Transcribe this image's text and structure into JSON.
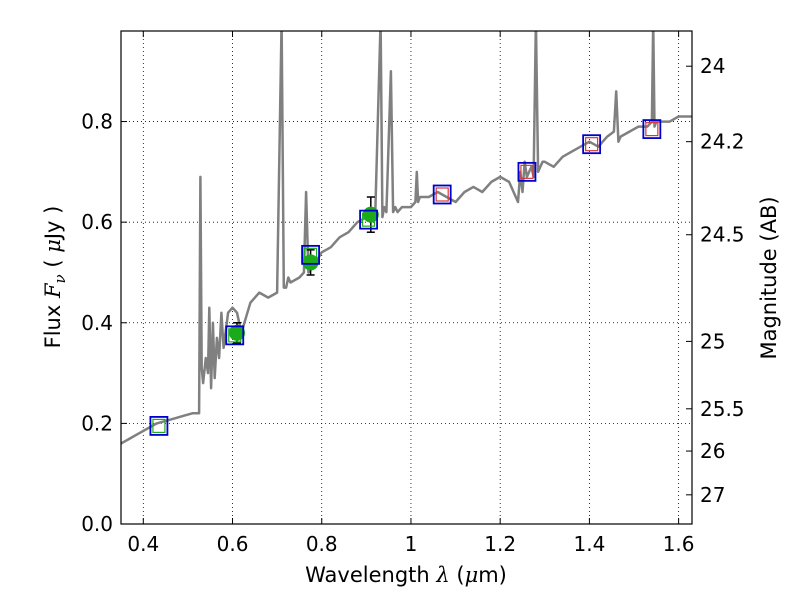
{
  "chart_data": {
    "type": "line",
    "xlabel": "Wavelength  λ (μm)",
    "ylabel": "Flux  F_ν  ( μJy )",
    "y2label": "Magnitude (AB)",
    "xlim": [
      0.35,
      1.63
    ],
    "ylim": [
      0.0,
      0.98
    ],
    "grid": true,
    "x_ticks": [
      0.4,
      0.6,
      0.8,
      1.0,
      1.2,
      1.4,
      1.6
    ],
    "x_tick_labels": [
      "0.4",
      "0.6",
      "0.8",
      "1",
      "1.2",
      "1.4",
      "1.6"
    ],
    "y_ticks": [
      0.0,
      0.2,
      0.4,
      0.6,
      0.8
    ],
    "y_tick_labels": [
      "0.0",
      "0.2",
      "0.4",
      "0.6",
      "0.8"
    ],
    "y2_ticks": [
      {
        "label": "24",
        "flux": 0.91
      },
      {
        "label": "24.2",
        "flux": 0.76
      },
      {
        "label": "24.5",
        "flux": 0.575
      },
      {
        "label": "25",
        "flux": 0.363
      },
      {
        "label": "25.5",
        "flux": 0.229
      },
      {
        "label": "26",
        "flux": 0.145
      },
      {
        "label": "27",
        "flux": 0.058
      }
    ],
    "colors": {
      "spectrum": "#808080",
      "measured": "#1aaa1a",
      "model_box": "#0000cc",
      "model_inner_green": "#22aa22",
      "model_inner_red": "#d43a3a",
      "errorbar": "#000000"
    },
    "series": [
      {
        "style": "line",
        "color": "#808080",
        "x": [
          0.35,
          0.37,
          0.39,
          0.41,
          0.43,
          0.45,
          0.47,
          0.49,
          0.51,
          0.525,
          0.528,
          0.531,
          0.534,
          0.54,
          0.545,
          0.548,
          0.552,
          0.556,
          0.56,
          0.565,
          0.57,
          0.575,
          0.58,
          0.59,
          0.6,
          0.61,
          0.62,
          0.63,
          0.64,
          0.66,
          0.68,
          0.7,
          0.71,
          0.715,
          0.72,
          0.725,
          0.73,
          0.75,
          0.76,
          0.765,
          0.77,
          0.78,
          0.8,
          0.82,
          0.84,
          0.86,
          0.88,
          0.9,
          0.92,
          0.932,
          0.936,
          0.94,
          0.945,
          0.955,
          0.96,
          0.965,
          0.97,
          0.98,
          1.0,
          1.01,
          1.013,
          1.016,
          1.02,
          1.04,
          1.06,
          1.08,
          1.1,
          1.12,
          1.14,
          1.16,
          1.18,
          1.2,
          1.22,
          1.24,
          1.245,
          1.25,
          1.255,
          1.26,
          1.27,
          1.275,
          1.28,
          1.285,
          1.29,
          1.295,
          1.3,
          1.32,
          1.34,
          1.36,
          1.38,
          1.4,
          1.42,
          1.44,
          1.455,
          1.46,
          1.465,
          1.47,
          1.49,
          1.51,
          1.53,
          1.54,
          1.543,
          1.546,
          1.55,
          1.56,
          1.58,
          1.6,
          1.62,
          1.63
        ],
        "y": [
          0.16,
          0.17,
          0.18,
          0.19,
          0.2,
          0.205,
          0.21,
          0.215,
          0.22,
          0.22,
          0.69,
          0.31,
          0.28,
          0.33,
          0.3,
          0.43,
          0.27,
          0.4,
          0.29,
          0.37,
          0.33,
          0.42,
          0.35,
          0.42,
          0.43,
          0.42,
          0.38,
          0.41,
          0.44,
          0.46,
          0.45,
          0.46,
          1.0,
          0.47,
          0.47,
          0.49,
          0.48,
          0.49,
          0.5,
          0.66,
          0.5,
          0.51,
          0.54,
          0.55,
          0.57,
          0.58,
          0.6,
          0.61,
          0.62,
          1.0,
          0.61,
          0.63,
          0.62,
          0.9,
          0.62,
          0.63,
          0.62,
          0.63,
          0.63,
          0.64,
          0.7,
          0.64,
          0.65,
          0.65,
          0.66,
          0.65,
          0.64,
          0.66,
          0.67,
          0.66,
          0.68,
          0.69,
          0.68,
          0.64,
          0.7,
          0.66,
          0.72,
          0.69,
          0.71,
          0.69,
          1.0,
          0.7,
          0.71,
          0.72,
          0.72,
          0.71,
          0.73,
          0.74,
          0.75,
          0.76,
          0.75,
          0.77,
          0.78,
          0.86,
          0.76,
          0.77,
          0.78,
          0.79,
          0.79,
          0.8,
          1.0,
          0.79,
          0.8,
          0.8,
          0.8,
          0.81,
          0.81,
          0.81
        ]
      },
      {
        "style": "errorbar-points",
        "color": "#1aaa1a",
        "x": [
          0.61,
          0.775,
          0.91
        ],
        "y": [
          0.38,
          0.52,
          0.615
        ],
        "yerr": [
          0.02,
          0.025,
          0.035
        ]
      },
      {
        "style": "open-squares",
        "color": "#0000cc",
        "x": [
          0.435,
          0.605,
          0.775,
          0.905,
          1.07,
          1.26,
          1.405,
          1.54
        ],
        "y": [
          0.195,
          0.375,
          0.535,
          0.605,
          0.655,
          0.7,
          0.755,
          0.785
        ],
        "inner_color": [
          "#22aa22",
          "#22aa22",
          "#22aa22",
          "#22aa22",
          "#d43a3a",
          "#d43a3a",
          "#d43a3a",
          "#d43a3a"
        ]
      }
    ]
  }
}
